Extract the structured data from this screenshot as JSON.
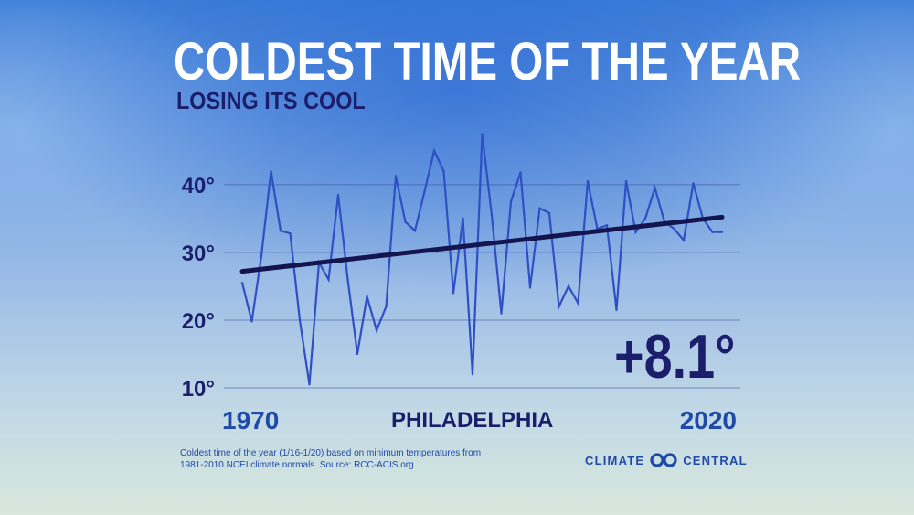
{
  "header": {
    "title": "COLDEST TIME OF THE YEAR",
    "subtitle": "LOSING ITS COOL"
  },
  "chart_data": {
    "type": "line",
    "x": [
      1970,
      1971,
      1972,
      1973,
      1974,
      1975,
      1976,
      1977,
      1978,
      1979,
      1980,
      1981,
      1982,
      1983,
      1984,
      1985,
      1986,
      1987,
      1988,
      1989,
      1990,
      1991,
      1992,
      1993,
      1994,
      1995,
      1996,
      1997,
      1998,
      1999,
      2000,
      2001,
      2002,
      2003,
      2004,
      2005,
      2006,
      2007,
      2008,
      2009,
      2010,
      2011,
      2012,
      2013,
      2014,
      2015,
      2016,
      2017,
      2018,
      2019,
      2020
    ],
    "series": [
      {
        "values": [
          25.5,
          19.8,
          29.5,
          42.0,
          33.2,
          32.8,
          20.0,
          10.5,
          28.5,
          26.0,
          38.5,
          26.0,
          15.0,
          23.5,
          18.5,
          22.0,
          41.3,
          34.5,
          33.2,
          39.0,
          45.0,
          42.0,
          24.0,
          35.0,
          12.0,
          47.5,
          35.5,
          21.0,
          37.5,
          41.8,
          24.8,
          36.5,
          35.8,
          22.0,
          25.0,
          22.5,
          40.5,
          33.5,
          34.0,
          21.5,
          40.5,
          33.0,
          35.0,
          39.5,
          34.5,
          33.5,
          31.8,
          40.2,
          35.0,
          33.0,
          33.0
        ],
        "color": "#2f4fc4"
      },
      {
        "trend": [
          [
            1970,
            27.2
          ],
          [
            2020,
            35.2
          ]
        ],
        "color": "#14154f"
      }
    ],
    "xlim": [
      1970,
      2020
    ],
    "ylim": [
      10,
      47
    ],
    "y_ticks": [
      10,
      20,
      30,
      40
    ],
    "y_tick_labels": [
      "10°",
      "20°",
      "30°",
      "40°"
    ],
    "x_tick_labels": [
      "1970",
      "2020"
    ],
    "grid": true,
    "location": "PHILADELPHIA",
    "change_label": "+8.1°"
  },
  "footer": {
    "note_line1": "Coldest time of the year (1/16-1/20) based on minimum temperatures from",
    "note_line2": "1981-2010 NCEI climate normals. Source: RCC-ACIS.org",
    "brand_left": "CLIMATE",
    "brand_right": "CENTRAL",
    "brand_logo": "climate-central-logo-icon"
  }
}
